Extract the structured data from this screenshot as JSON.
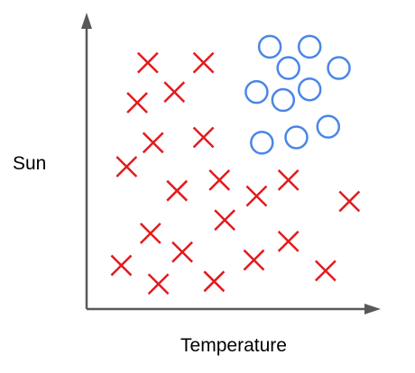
{
  "chart_data": {
    "type": "scatter",
    "xlabel": "Temperature",
    "ylabel": "Sun",
    "xlim": [
      0,
      10
    ],
    "ylim": [
      0,
      10
    ],
    "grid": false,
    "legend": "none",
    "colors": {
      "cross": "#e31a1c",
      "circle": "#4a86e8",
      "axis": "#595959"
    },
    "series": [
      {
        "marker": "x",
        "points": [
          {
            "x": 1.9,
            "y": 9.0
          },
          {
            "x": 4.0,
            "y": 9.0
          },
          {
            "x": 1.5,
            "y": 7.5
          },
          {
            "x": 2.9,
            "y": 7.9
          },
          {
            "x": 2.1,
            "y": 6.0
          },
          {
            "x": 4.0,
            "y": 6.2
          },
          {
            "x": 1.1,
            "y": 5.1
          },
          {
            "x": 3.0,
            "y": 4.2
          },
          {
            "x": 4.6,
            "y": 4.6
          },
          {
            "x": 6.0,
            "y": 4.0
          },
          {
            "x": 7.2,
            "y": 4.6
          },
          {
            "x": 9.5,
            "y": 3.8
          },
          {
            "x": 4.8,
            "y": 3.1
          },
          {
            "x": 2.0,
            "y": 2.6
          },
          {
            "x": 3.2,
            "y": 1.9
          },
          {
            "x": 5.9,
            "y": 1.6
          },
          {
            "x": 7.2,
            "y": 2.3
          },
          {
            "x": 0.9,
            "y": 1.4
          },
          {
            "x": 2.3,
            "y": 0.7
          },
          {
            "x": 4.4,
            "y": 0.8
          },
          {
            "x": 8.6,
            "y": 1.2
          }
        ]
      },
      {
        "marker": "o",
        "points": [
          {
            "x": 6.5,
            "y": 9.6
          },
          {
            "x": 8.0,
            "y": 9.6
          },
          {
            "x": 7.2,
            "y": 8.8
          },
          {
            "x": 9.1,
            "y": 8.8
          },
          {
            "x": 6.0,
            "y": 7.9
          },
          {
            "x": 7.0,
            "y": 7.6
          },
          {
            "x": 8.0,
            "y": 8.0
          },
          {
            "x": 8.7,
            "y": 6.6
          },
          {
            "x": 6.2,
            "y": 6.0
          },
          {
            "x": 7.5,
            "y": 6.2
          }
        ]
      }
    ]
  }
}
